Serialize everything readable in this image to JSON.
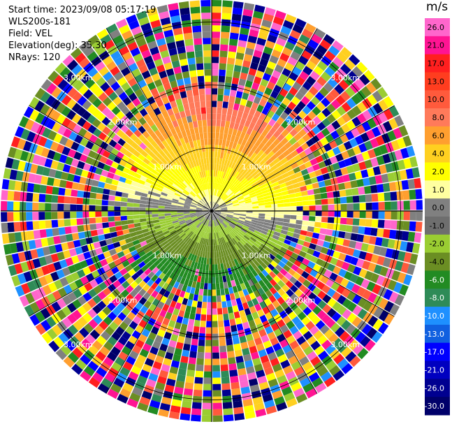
{
  "info": {
    "start_time": "Start time: 2023/09/08 05:17:19",
    "instrument": "WLS200s-181",
    "field": "Field: VEL",
    "elevation": "Elevation(deg): 35.30",
    "nrays": "NRays: 120"
  },
  "colorbar": {
    "unit": "m/s",
    "ticks": [
      "26.0",
      "21.0",
      "17.0",
      "13.0",
      "10.0",
      "8.0",
      "6.0",
      "4.0",
      "2.0",
      "1.0",
      "0.0",
      "-1.0",
      "-2.0",
      "-4.0",
      "-6.0",
      "-8.0",
      "-10.0",
      "-13.0",
      "-17.0",
      "-21.0",
      "-26.0",
      "-30.0"
    ],
    "colors": [
      "#ff66cc",
      "#ff1493",
      "#ff1f1f",
      "#ff3d1f",
      "#ff5a3c",
      "#ff7a5a",
      "#ff9f2f",
      "#ffd020",
      "#ffff00",
      "#ffffa0",
      "#808080",
      "#6e6e6e",
      "#9acd32",
      "#6b8e23",
      "#228b22",
      "#2e8b57",
      "#1e90ff",
      "#1060e0",
      "#0000ff",
      "#0000c0",
      "#000090",
      "#00006a"
    ]
  },
  "range_labels": [
    "1.00km",
    "2.00km",
    "3.00km"
  ],
  "map": {
    "nrays": 120,
    "max_range_km": 3.35,
    "ring_km": [
      1,
      2,
      3
    ]
  }
}
